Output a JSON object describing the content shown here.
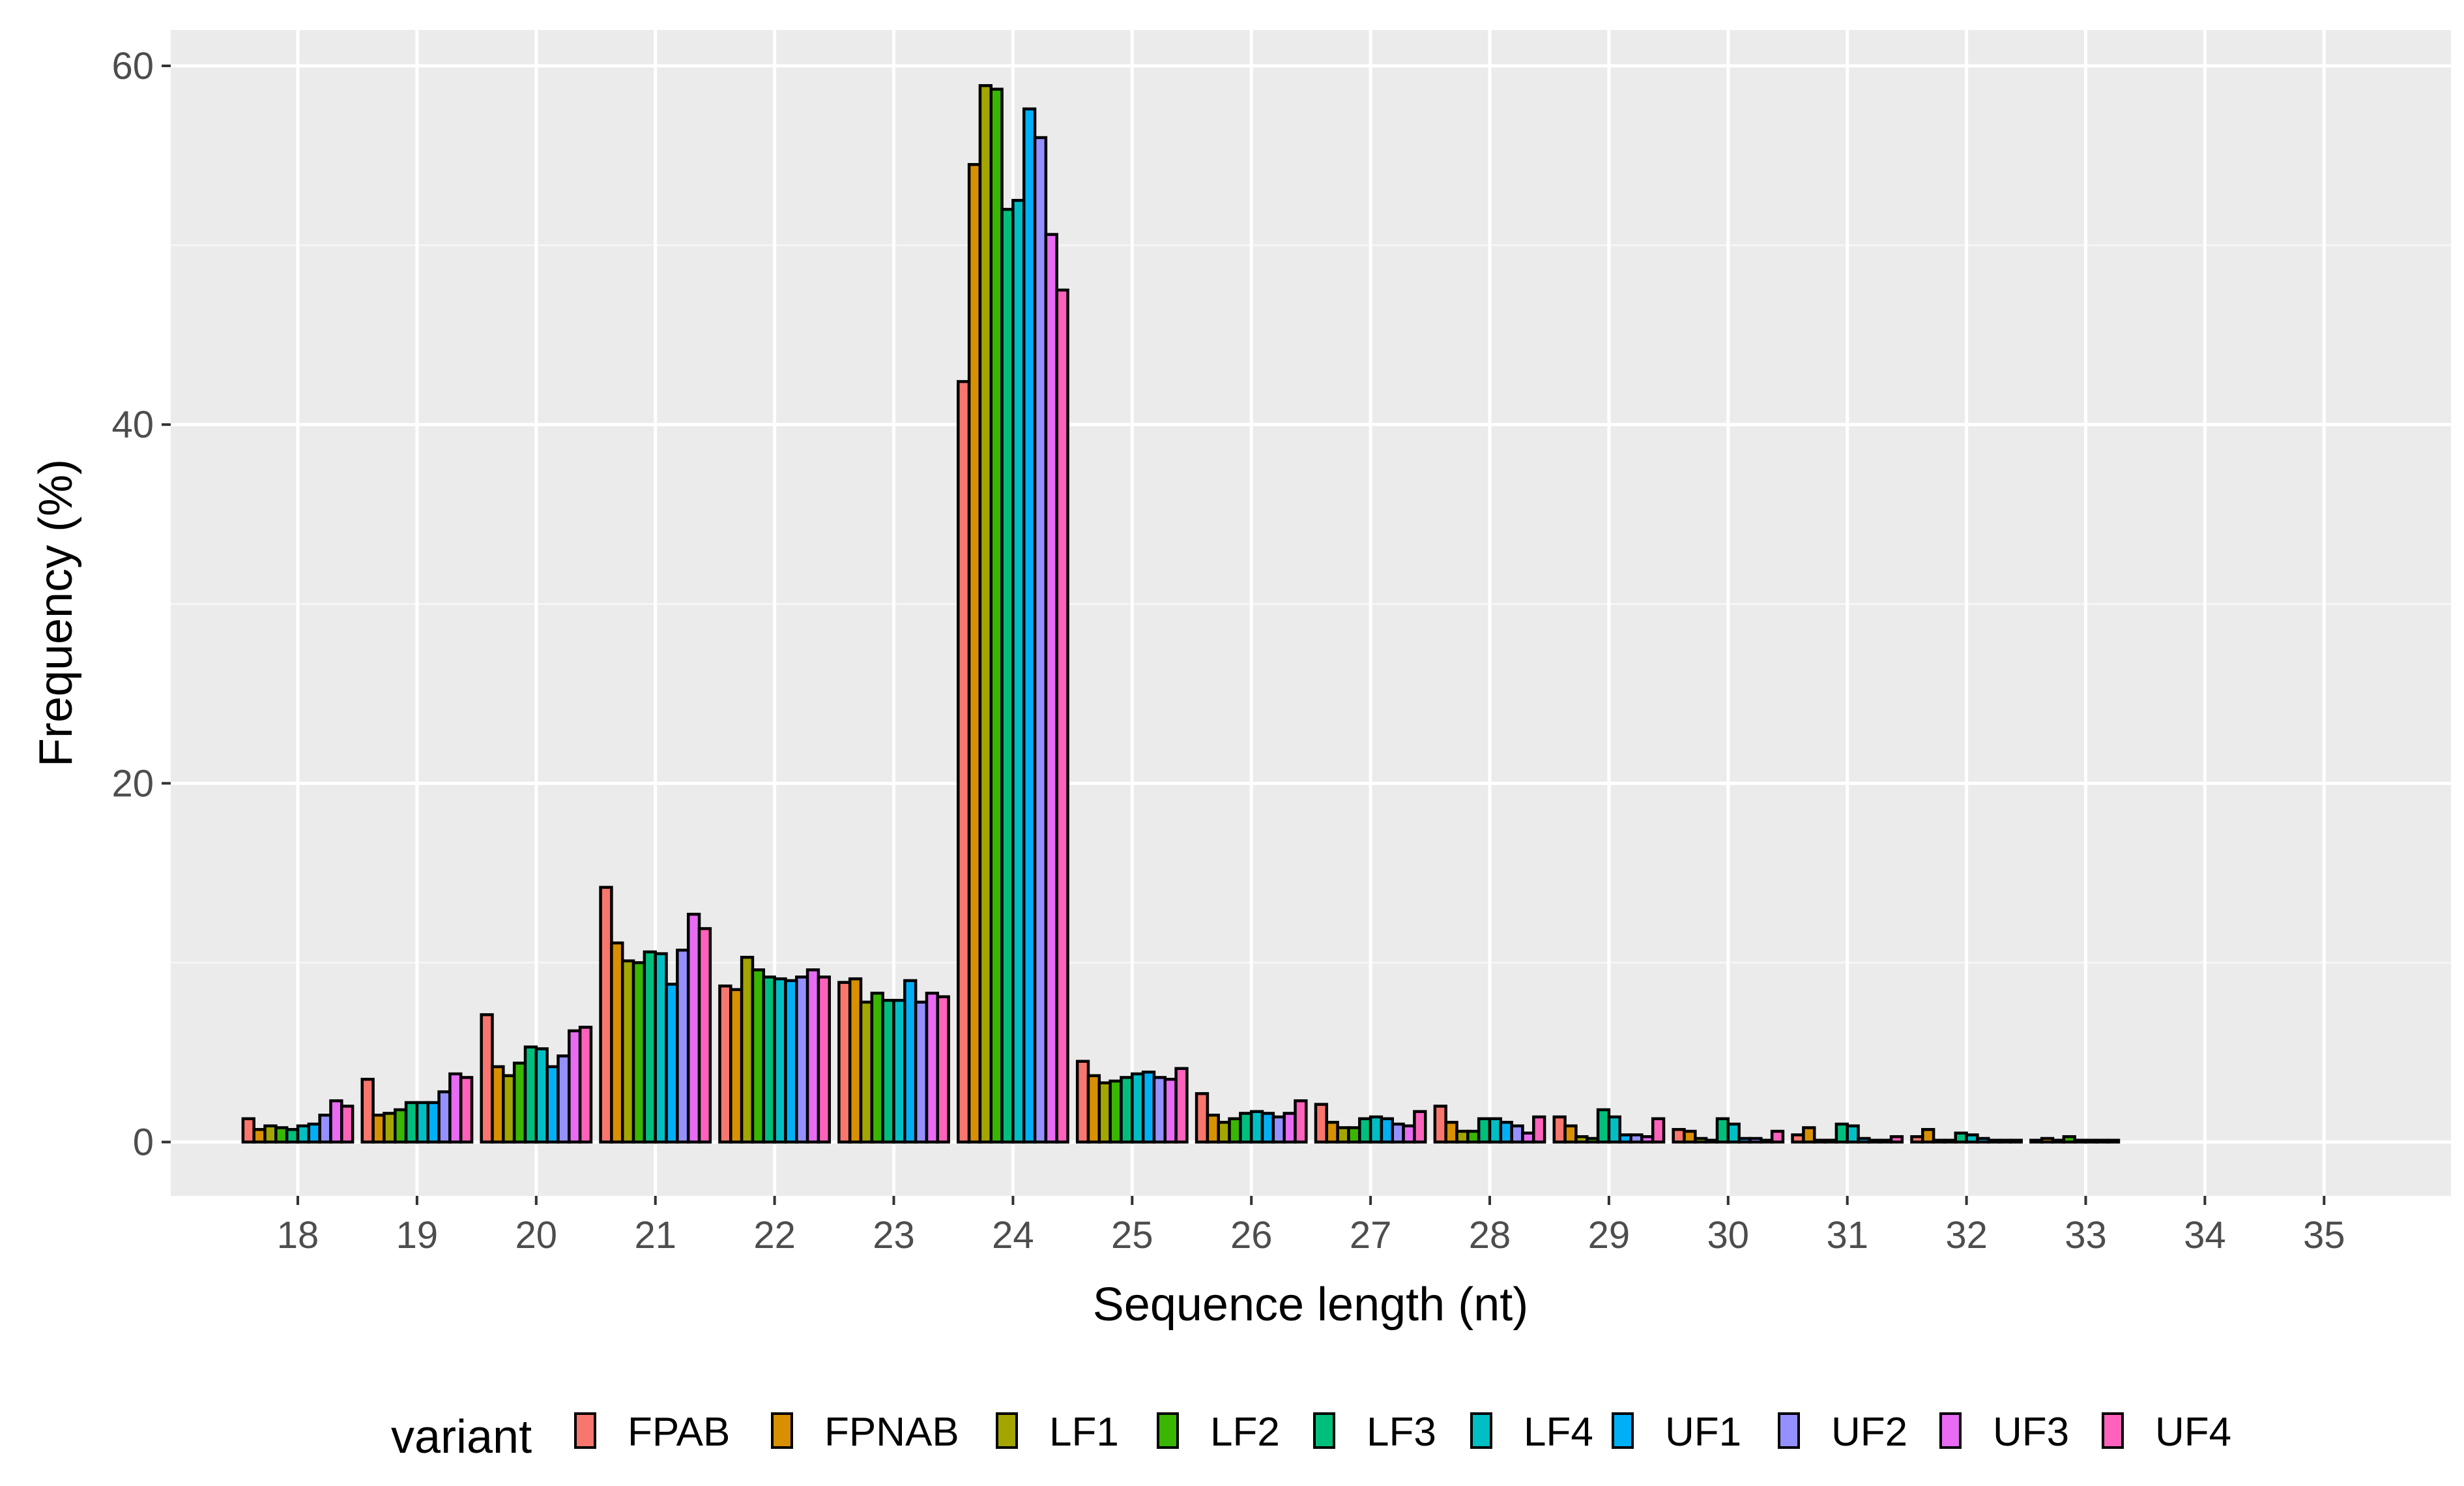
{
  "chart_data": {
    "type": "bar",
    "xlabel": "Sequence length (nt)",
    "ylabel": "Frequency (%)",
    "ylim": [
      -3,
      62
    ],
    "yticks": [
      0,
      20,
      40,
      60
    ],
    "grid": true,
    "legend_position": "bottom",
    "legend_title": "variant",
    "categories": [
      "18",
      "19",
      "20",
      "21",
      "22",
      "23",
      "24",
      "25",
      "26",
      "27",
      "28",
      "29",
      "30",
      "31",
      "32",
      "33",
      "34",
      "35"
    ],
    "colors": {
      "FPAB": "#F8766D",
      "FPNAB": "#D89000",
      "LF1": "#A3A500",
      "LF2": "#39B600",
      "LF3": "#00BF7D",
      "LF4": "#00BFC4",
      "UF1": "#00B0F6",
      "UF2": "#9590FF",
      "UF3": "#E76BF3",
      "UF4": "#FF62BC"
    },
    "series": [
      {
        "name": "FPAB",
        "values": [
          1.3,
          3.5,
          7.1,
          14.2,
          8.7,
          8.9,
          42.4,
          4.5,
          2.7,
          2.1,
          2.0,
          1.4,
          0.7,
          0.4,
          0.3,
          0.1,
          0.0,
          0.0
        ]
      },
      {
        "name": "FPNAB",
        "values": [
          0.7,
          1.5,
          4.2,
          11.1,
          8.5,
          9.1,
          54.5,
          3.7,
          1.5,
          1.1,
          1.1,
          0.9,
          0.6,
          0.8,
          0.7,
          0.2,
          0.0,
          0.0
        ]
      },
      {
        "name": "LF1",
        "values": [
          0.9,
          1.6,
          3.7,
          10.1,
          10.3,
          7.8,
          58.9,
          3.3,
          1.1,
          0.8,
          0.6,
          0.3,
          0.2,
          0.1,
          0.1,
          0.1,
          0.0,
          0.0
        ]
      },
      {
        "name": "LF2",
        "values": [
          0.8,
          1.8,
          4.4,
          10.0,
          9.6,
          8.3,
          58.7,
          3.4,
          1.3,
          0.8,
          0.6,
          0.2,
          0.1,
          0.1,
          0.1,
          0.3,
          0.0,
          0.0
        ]
      },
      {
        "name": "LF3",
        "values": [
          0.7,
          2.2,
          5.3,
          10.6,
          9.2,
          7.9,
          52.0,
          3.6,
          1.6,
          1.3,
          1.3,
          1.8,
          1.3,
          1.0,
          0.5,
          0.1,
          0.0,
          0.0
        ]
      },
      {
        "name": "LF4",
        "values": [
          0.9,
          2.2,
          5.2,
          10.5,
          9.1,
          7.9,
          52.5,
          3.8,
          1.7,
          1.4,
          1.3,
          1.4,
          1.0,
          0.9,
          0.4,
          0.1,
          0.0,
          0.0
        ]
      },
      {
        "name": "UF1",
        "values": [
          1.0,
          2.2,
          4.2,
          8.8,
          9.0,
          9.0,
          57.6,
          3.9,
          1.6,
          1.3,
          1.1,
          0.4,
          0.2,
          0.2,
          0.2,
          0.1,
          0.0,
          0.0
        ]
      },
      {
        "name": "UF2",
        "values": [
          1.5,
          2.8,
          4.8,
          10.7,
          9.2,
          7.8,
          56.0,
          3.6,
          1.4,
          1.0,
          0.9,
          0.4,
          0.2,
          0.1,
          0.1,
          0.1,
          0.0,
          0.0
        ]
      },
      {
        "name": "UF3",
        "values": [
          2.3,
          3.8,
          6.2,
          12.7,
          9.6,
          8.3,
          50.6,
          3.5,
          1.6,
          0.9,
          0.5,
          0.3,
          0.1,
          0.1,
          0.1,
          0.0,
          0.0,
          0.0
        ]
      },
      {
        "name": "UF4",
        "values": [
          2.0,
          3.6,
          6.4,
          11.9,
          9.2,
          8.1,
          47.5,
          4.1,
          2.3,
          1.7,
          1.4,
          1.3,
          0.6,
          0.3,
          0.1,
          0.0,
          0.0,
          0.0
        ]
      }
    ]
  }
}
